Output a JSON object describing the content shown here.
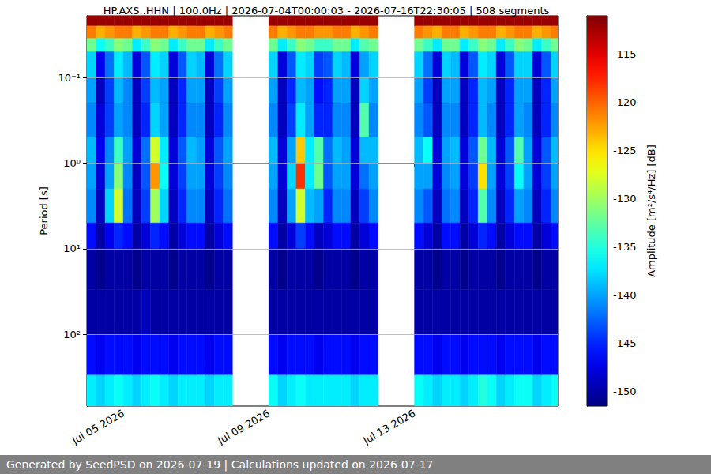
{
  "chart_data": {
    "type": "heatmap",
    "title": "HP.AXS..HHN | 100.0Hz | 2026-07-04T00:00:03 - 2026-07-16T22:30:05 | 508 segments",
    "ylabel": "Period [s]",
    "footer": "Generated by SeedPSD on 2026-07-19 | Calculations updated on 2026-07-17",
    "log": "y",
    "grid": true,
    "xlim": [
      "2026-07-04T00:00:03",
      "2026-07-16T22:30:05"
    ],
    "xticks": [
      {
        "value": "2026-07-05T00:00:00",
        "label": "Jul 05 2026"
      },
      {
        "value": "2026-07-09T00:00:00",
        "label": "Jul 09 2026"
      },
      {
        "value": "2026-07-13T00:00:00",
        "label": "Jul 13 2026"
      }
    ],
    "ylim": [
      0.019,
      690
    ],
    "yticks": [
      {
        "value": 0.1,
        "label": "10⁻¹"
      },
      {
        "value": 1,
        "label": "10⁰"
      },
      {
        "value": 10,
        "label": "10¹"
      },
      {
        "value": 100,
        "label": "10²"
      }
    ],
    "colorbar": {
      "label": "Amplitude [m²/s⁴/Hz] [dB]",
      "range": [
        -151.5,
        -111
      ],
      "ticks": [
        -150,
        -145,
        -140,
        -135,
        -130,
        -125,
        -120,
        -115
      ]
    },
    "x": [
      "2026-07-04T00:00:03",
      "2026-07-04T06:00:00",
      "2026-07-04T12:00:00",
      "2026-07-04T18:00:00",
      "2026-07-05T00:00:00",
      "2026-07-05T06:00:00",
      "2026-07-05T12:00:00",
      "2026-07-05T18:00:00",
      "2026-07-06T00:00:00",
      "2026-07-06T06:00:00",
      "2026-07-06T12:00:00",
      "2026-07-06T18:00:00",
      "2026-07-07T00:00:00",
      "2026-07-07T06:00:00",
      "2026-07-07T12:00:00",
      "2026-07-07T18:00:00",
      "2026-07-08T00:00:00",
      "2026-07-08T06:00:00",
      "2026-07-08T12:00:00",
      "2026-07-08T18:00:00",
      "2026-07-09T00:00:00",
      "2026-07-09T06:00:00",
      "2026-07-09T12:00:00",
      "2026-07-09T18:00:00",
      "2026-07-10T00:00:00",
      "2026-07-10T06:00:00",
      "2026-07-10T12:00:00",
      "2026-07-10T18:00:00",
      "2026-07-11T00:00:00",
      "2026-07-11T06:00:00",
      "2026-07-11T12:00:00",
      "2026-07-11T18:00:00",
      "2026-07-12T00:00:00",
      "2026-07-12T06:00:00",
      "2026-07-12T12:00:00",
      "2026-07-12T18:00:00",
      "2026-07-13T00:00:00",
      "2026-07-13T06:00:00",
      "2026-07-13T12:00:00",
      "2026-07-13T18:00:00",
      "2026-07-14T00:00:00",
      "2026-07-14T06:00:00",
      "2026-07-14T12:00:00",
      "2026-07-14T18:00:00",
      "2026-07-15T00:00:00",
      "2026-07-15T06:00:00",
      "2026-07-15T12:00:00",
      "2026-07-15T18:00:00",
      "2026-07-16T00:00:00",
      "2026-07-16T06:00:00",
      "2026-07-16T12:00:00",
      "2026-07-16T18:00:00",
      "2026-07-16T22:30:05"
    ],
    "y": [
      0.019,
      0.025,
      0.035,
      0.05,
      0.1,
      0.2,
      0.5,
      1,
      2,
      5,
      10,
      30,
      100,
      300,
      690
    ],
    "z": [
      [
        -112,
        -121,
        -132,
        -138,
        -140,
        -141,
        -139,
        -140,
        -141,
        -146,
        -150,
        -150,
        -146,
        -137
      ],
      [
        -112,
        -123,
        -136,
        -147,
        -149,
        -148,
        -147,
        -148,
        -149,
        -150,
        -151,
        -150,
        -147,
        -138
      ],
      [
        -112,
        -122,
        -134,
        -142,
        -144,
        -144,
        -141,
        -140,
        -138,
        -147,
        -150,
        -150,
        -146,
        -137
      ],
      [
        -112,
        -121,
        -131,
        -137,
        -139,
        -140,
        -134,
        -131,
        -128,
        -145,
        -150,
        -150,
        -146,
        -136
      ],
      [
        -112,
        -121,
        -132,
        -139,
        -141,
        -141,
        -140,
        -141,
        -142,
        -146,
        -150,
        -150,
        -146,
        -137
      ],
      [
        -112,
        -123,
        -137,
        -148,
        -149,
        -149,
        -148,
        -149,
        -149,
        -150,
        -151,
        -150,
        -147,
        -138
      ],
      [
        -112,
        -122,
        -134,
        -143,
        -144,
        -145,
        -142,
        -143,
        -144,
        -148,
        -150,
        -149,
        -146,
        -137
      ],
      [
        -112,
        -121,
        -131,
        -137,
        -139,
        -138,
        -128,
        -122,
        -130,
        -145,
        -150,
        -150,
        -146,
        -136
      ],
      [
        -112,
        -121,
        -132,
        -138,
        -140,
        -140,
        -137,
        -136,
        -138,
        -146,
        -150,
        -150,
        -146,
        -137
      ],
      [
        -112,
        -123,
        -137,
        -148,
        -149,
        -149,
        -148,
        -148,
        -149,
        -150,
        -151,
        -150,
        -147,
        -138
      ],
      [
        -112,
        -122,
        -134,
        -143,
        -145,
        -145,
        -143,
        -144,
        -145,
        -148,
        -150,
        -150,
        -146,
        -137
      ],
      [
        -112,
        -121,
        -132,
        -138,
        -140,
        -141,
        -139,
        -140,
        -141,
        -146,
        -150,
        -150,
        -146,
        -137
      ],
      [
        -112,
        -121,
        -132,
        -139,
        -140,
        -141,
        -140,
        -140,
        -141,
        -146,
        -150,
        -150,
        -146,
        -137
      ],
      [
        -112,
        -123,
        -137,
        -148,
        -149,
        -149,
        -148,
        -148,
        -149,
        -150,
        -151,
        -150,
        -147,
        -138
      ],
      [
        -112,
        -122,
        -134,
        -142,
        -144,
        -145,
        -143,
        -144,
        -145,
        -148,
        -150,
        -150,
        -146,
        -137
      ],
      [
        -112,
        -121,
        -132,
        -138,
        -140,
        -141,
        -140,
        -141,
        -142,
        -146,
        -150,
        -150,
        -146,
        -137
      ],
      null,
      null,
      null,
      null,
      [
        -112,
        -121,
        -132,
        -138,
        -140,
        -141,
        -139,
        -140,
        -141,
        -146,
        -150,
        -150,
        -146,
        -136
      ],
      [
        -112,
        -123,
        -137,
        -148,
        -149,
        -149,
        -148,
        -148,
        -149,
        -150,
        -151,
        -150,
        -147,
        -138
      ],
      [
        -112,
        -122,
        -134,
        -143,
        -145,
        -144,
        -140,
        -138,
        -140,
        -148,
        -150,
        -150,
        -146,
        -137
      ],
      [
        -112,
        -121,
        -131,
        -137,
        -139,
        -137,
        -124,
        -118,
        -128,
        -144,
        -150,
        -150,
        -146,
        -136
      ],
      [
        -112,
        -121,
        -132,
        -138,
        -140,
        -140,
        -137,
        -137,
        -139,
        -146,
        -150,
        -150,
        -146,
        -137
      ],
      [
        -112,
        -122,
        -134,
        -144,
        -146,
        -145,
        -133,
        -132,
        -140,
        -149,
        -151,
        -150,
        -147,
        -137
      ],
      [
        -112,
        -122,
        -134,
        -143,
        -145,
        -145,
        -142,
        -143,
        -145,
        -148,
        -150,
        -150,
        -146,
        -137
      ],
      [
        -112,
        -121,
        -132,
        -138,
        -140,
        -141,
        -139,
        -140,
        -141,
        -146,
        -150,
        -150,
        -146,
        -137
      ],
      [
        -112,
        -121,
        -132,
        -139,
        -140,
        -141,
        -140,
        -140,
        -141,
        -146,
        -150,
        -150,
        -146,
        -137
      ],
      [
        -112,
        -123,
        -137,
        -148,
        -149,
        -149,
        -148,
        -148,
        -149,
        -150,
        -151,
        -150,
        -147,
        -138
      ],
      [
        -112,
        -122,
        -133,
        -140,
        -138,
        -133,
        -139,
        -142,
        -144,
        -148,
        -150,
        -150,
        -146,
        -137
      ],
      [
        -112,
        -121,
        -132,
        -138,
        -140,
        -141,
        -139,
        -140,
        -141,
        -146,
        -150,
        -150,
        -146,
        -137
      ],
      null,
      null,
      null,
      null,
      [
        -112,
        -121,
        -132,
        -138,
        -140,
        -141,
        -139,
        -140,
        -141,
        -146,
        -150,
        -150,
        -146,
        -136
      ],
      [
        -112,
        -122,
        -134,
        -142,
        -144,
        -143,
        -136,
        -140,
        -143,
        -148,
        -150,
        -150,
        -146,
        -137
      ],
      [
        -112,
        -123,
        -137,
        -148,
        -149,
        -149,
        -148,
        -148,
        -149,
        -150,
        -151,
        -150,
        -147,
        -138
      ],
      [
        -112,
        -121,
        -132,
        -138,
        -140,
        -141,
        -140,
        -141,
        -142,
        -146,
        -150,
        -150,
        -146,
        -137
      ],
      [
        -112,
        -121,
        -132,
        -139,
        -140,
        -141,
        -139,
        -140,
        -141,
        -146,
        -150,
        -150,
        -146,
        -137
      ],
      [
        -112,
        -123,
        -137,
        -148,
        -149,
        -149,
        -148,
        -148,
        -149,
        -150,
        -151,
        -150,
        -147,
        -138
      ],
      [
        -112,
        -122,
        -134,
        -143,
        -145,
        -145,
        -143,
        -144,
        -145,
        -148,
        -150,
        -150,
        -146,
        -137
      ],
      [
        -112,
        -121,
        -131,
        -137,
        -139,
        -139,
        -132,
        -125,
        -133,
        -145,
        -150,
        -150,
        -146,
        -135
      ],
      [
        -112,
        -121,
        -132,
        -138,
        -140,
        -141,
        -139,
        -140,
        -141,
        -146,
        -150,
        -150,
        -146,
        -136
      ],
      [
        -112,
        -123,
        -137,
        -148,
        -149,
        -149,
        -148,
        -148,
        -149,
        -150,
        -151,
        -150,
        -147,
        -138
      ],
      [
        -112,
        -122,
        -134,
        -143,
        -145,
        -145,
        -143,
        -144,
        -145,
        -148,
        -150,
        -150,
        -146,
        -137
      ],
      [
        -112,
        -121,
        -131,
        -138,
        -140,
        -140,
        -133,
        -136,
        -140,
        -146,
        -150,
        -150,
        -146,
        -136
      ],
      [
        -112,
        -121,
        -132,
        -138,
        -140,
        -141,
        -140,
        -140,
        -141,
        -146,
        -150,
        -150,
        -146,
        -136
      ],
      [
        -112,
        -123,
        -137,
        -148,
        -149,
        -149,
        -148,
        -148,
        -149,
        -150,
        -151,
        -150,
        -147,
        -138
      ],
      [
        -112,
        -122,
        -134,
        -143,
        -145,
        -145,
        -143,
        -144,
        -145,
        -148,
        -150,
        -150,
        -146,
        -137
      ],
      [
        -112,
        -121,
        -132,
        -138,
        -140,
        -141,
        -139,
        -140,
        -141,
        -146,
        -150,
        -150,
        -146,
        -136
      ]
    ]
  }
}
